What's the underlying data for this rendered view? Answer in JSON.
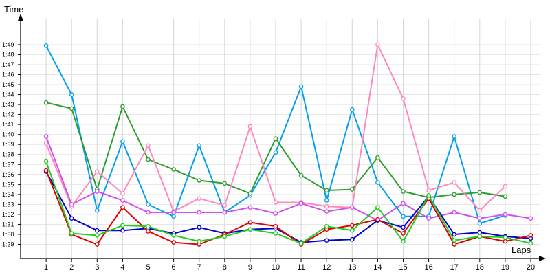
{
  "chart_data": {
    "type": "line",
    "ylabel": "Time",
    "xlabel": "Laps",
    "x": [
      1,
      2,
      3,
      4,
      5,
      6,
      7,
      8,
      9,
      10,
      11,
      12,
      13,
      14,
      15,
      16,
      17,
      18,
      19,
      20
    ],
    "xlim": [
      0,
      20
    ],
    "y_unit": "seconds",
    "ylim": [
      87.5,
      111
    ],
    "y_ticks": [
      89,
      90,
      91,
      92,
      93,
      94,
      95,
      96,
      97,
      98,
      99,
      100,
      101,
      102,
      103,
      104,
      105,
      106,
      107,
      108,
      109
    ],
    "y_tick_labels": [
      "1:29",
      "1:30",
      "1:31",
      "1:32",
      "1:33",
      "1:34",
      "1:35",
      "1:36",
      "1:37",
      "1:38",
      "1:39",
      "1:40",
      "1:41",
      "1:42",
      "1:43",
      "1:44",
      "1:45",
      "1:46",
      "1:47",
      "1:48",
      "1:49"
    ],
    "grid": true,
    "legend": false,
    "series": [
      {
        "color": "#00a0f0",
        "values": [
          108.9,
          104.0,
          92.4,
          99.3,
          93.0,
          91.8,
          98.9,
          92.2,
          93.9,
          98.2,
          104.8,
          93.4,
          102.5,
          95.2,
          91.8,
          91.8,
          99.8,
          91.1,
          91.9,
          null
        ]
      },
      {
        "color": "#2f9e2f",
        "values": [
          103.2,
          102.6,
          94.5,
          102.8,
          97.5,
          96.5,
          95.4,
          95.1,
          94.1,
          99.6,
          95.9,
          94.4,
          94.5,
          97.7,
          94.3,
          93.7,
          94.0,
          94.2,
          93.8,
          null
        ]
      },
      {
        "color": "#ff88c0",
        "values": [
          99.1,
          92.8,
          96.3,
          94.1,
          98.9,
          92.3,
          93.6,
          92.9,
          100.8,
          93.2,
          93.2,
          92.8,
          92.7,
          109.0,
          103.6,
          94.4,
          95.2,
          92.4,
          94.8,
          null
        ]
      },
      {
        "color": "#d050f0",
        "values": [
          99.8,
          93.0,
          94.3,
          93.4,
          92.2,
          92.2,
          92.2,
          92.2,
          92.7,
          92.1,
          93.1,
          92.3,
          92.7,
          91.4,
          93.1,
          91.6,
          92.2,
          91.6,
          92.0,
          91.6
        ]
      },
      {
        "color": "#0000d0",
        "values": [
          96.3,
          91.6,
          90.4,
          90.4,
          90.6,
          90.1,
          90.7,
          90.1,
          90.5,
          90.6,
          89.2,
          89.4,
          89.5,
          91.4,
          90.7,
          93.8,
          90.0,
          90.2,
          89.8,
          89.6
        ]
      },
      {
        "color": "#e00000",
        "values": [
          96.4,
          90.0,
          89.0,
          92.7,
          90.3,
          89.2,
          89.0,
          90.0,
          91.2,
          90.8,
          89.0,
          90.5,
          90.9,
          91.5,
          90.1,
          93.6,
          89.0,
          89.8,
          89.3,
          89.9
        ]
      },
      {
        "color": "#22cc22",
        "values": [
          97.3,
          90.1,
          89.9,
          90.9,
          90.8,
          89.9,
          89.3,
          89.8,
          90.5,
          90.1,
          89.1,
          90.8,
          90.4,
          92.7,
          89.3,
          93.9,
          89.4,
          89.8,
          89.7,
          89.1
        ]
      }
    ]
  }
}
